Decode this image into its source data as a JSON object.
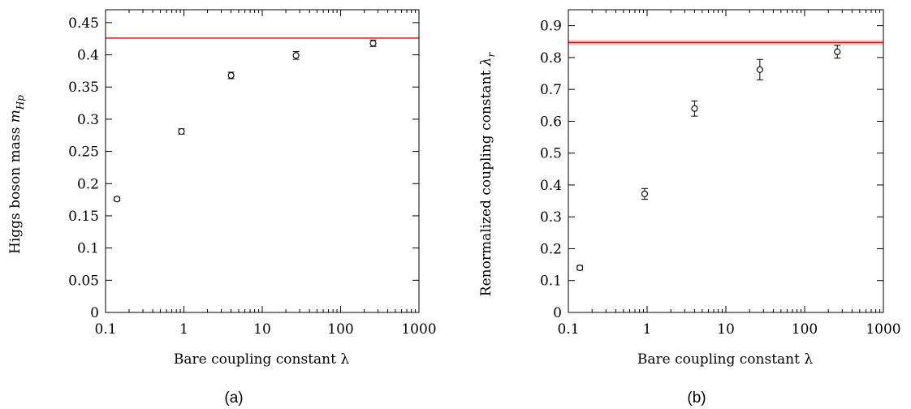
{
  "chart_data": [
    {
      "type": "scatter",
      "panel_label": "(a)",
      "xlabel": "Bare coupling constant λ",
      "ylabel": "Higgs boson mass m_Hp",
      "ylabel_main": "Higgs boson mass ",
      "ylabel_math": "m",
      "ylabel_sub": "Hp",
      "x_scale": "log",
      "xlim": [
        0.1,
        1000
      ],
      "ylim": [
        0,
        0.47
      ],
      "x_ticks": [
        0.1,
        1,
        10,
        100,
        1000
      ],
      "x_tick_labels": [
        "0.1",
        "1",
        "10",
        "100",
        "1000"
      ],
      "y_ticks": [
        0,
        0.05,
        0.1,
        0.15,
        0.2,
        0.25,
        0.3,
        0.35,
        0.4,
        0.45
      ],
      "y_tick_labels": [
        "0",
        "0.05",
        "0.1",
        "0.15",
        "0.2",
        "0.25",
        "0.3",
        "0.35",
        "0.4",
        "0.45"
      ],
      "points": [
        {
          "x": 0.14,
          "y": 0.176,
          "err": 0.003
        },
        {
          "x": 0.93,
          "y": 0.281,
          "err": 0.004
        },
        {
          "x": 4.0,
          "y": 0.368,
          "err": 0.005
        },
        {
          "x": 27.0,
          "y": 0.399,
          "err": 0.006
        },
        {
          "x": 260.0,
          "y": 0.418,
          "err": 0.005
        }
      ],
      "reference_line": {
        "y": 0.426,
        "band": 0.0,
        "color": "#e00000"
      },
      "grid": false
    },
    {
      "type": "scatter",
      "panel_label": "(b)",
      "xlabel": "Bare coupling constant λ",
      "ylabel": "Renormalized coupling constant λ_r",
      "ylabel_main": "Renormalized coupling constant ",
      "ylabel_math": "λ",
      "ylabel_sub": "r",
      "x_scale": "log",
      "xlim": [
        0.1,
        1000
      ],
      "ylim": [
        0,
        0.95
      ],
      "x_ticks": [
        0.1,
        1,
        10,
        100,
        1000
      ],
      "x_tick_labels": [
        "0.1",
        "1",
        "10",
        "100",
        "1000"
      ],
      "y_ticks": [
        0,
        0.1,
        0.2,
        0.3,
        0.4,
        0.5,
        0.6,
        0.7,
        0.8,
        0.9
      ],
      "y_tick_labels": [
        "0",
        "0.1",
        "0.2",
        "0.3",
        "0.4",
        "0.5",
        "0.6",
        "0.7",
        "0.8",
        "0.9"
      ],
      "points": [
        {
          "x": 0.14,
          "y": 0.14,
          "err": 0.007
        },
        {
          "x": 0.93,
          "y": 0.372,
          "err": 0.017
        },
        {
          "x": 4.0,
          "y": 0.64,
          "err": 0.024
        },
        {
          "x": 27.0,
          "y": 0.762,
          "err": 0.032
        },
        {
          "x": 260.0,
          "y": 0.818,
          "err": 0.02
        }
      ],
      "reference_line": {
        "y": 0.847,
        "band": 0.008,
        "color": "#e00000"
      },
      "grid": false
    }
  ]
}
